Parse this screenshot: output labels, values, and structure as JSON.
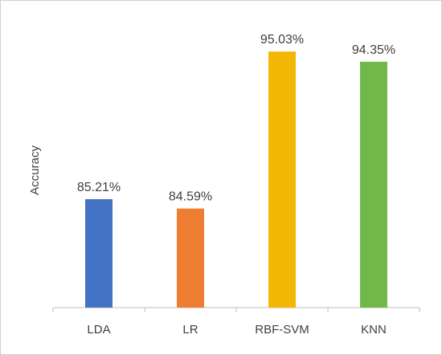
{
  "chart_data": {
    "type": "bar",
    "categories": [
      "LDA",
      "LR",
      "RBF-SVM",
      "KNN"
    ],
    "values": [
      85.21,
      84.59,
      95.03,
      94.35
    ],
    "data_labels": [
      "85.21%",
      "84.59%",
      "95.03%",
      "94.35%"
    ],
    "colors": [
      "#4472C4",
      "#ED7D31",
      "#F2B705",
      "#70B84A"
    ],
    "title": "",
    "xlabel": "",
    "ylabel": "Accuracy",
    "ylim": [
      78,
      96
    ],
    "grid": false,
    "legend": "none"
  }
}
